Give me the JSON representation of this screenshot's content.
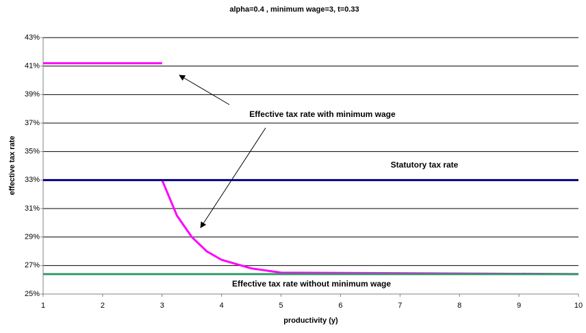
{
  "chart_data": {
    "type": "line",
    "title": "alpha=0.4 , minimum wage=3, t=0.33",
    "x_label": "productivity (y)",
    "y_label": "effective tax rate",
    "xlim": [
      1,
      10
    ],
    "xticks": [
      1,
      2,
      3,
      4,
      5,
      6,
      7,
      8,
      9,
      10
    ],
    "ylim": [
      25,
      43
    ],
    "yticks": [
      {
        "value": 25,
        "label": "25%"
      },
      {
        "value": 27,
        "label": "27%"
      },
      {
        "value": 29,
        "label": "29%"
      },
      {
        "value": 31,
        "label": "31%"
      },
      {
        "value": 33,
        "label": "33%"
      },
      {
        "value": 35,
        "label": "35%"
      },
      {
        "value": 37,
        "label": "37%"
      },
      {
        "value": 39,
        "label": "39%"
      },
      {
        "value": 41,
        "label": "41%"
      },
      {
        "value": 43,
        "label": "43%"
      }
    ],
    "grid": true,
    "series": [
      {
        "name": "Effective tax rate with minimum wage",
        "color": "#ff00ff",
        "x": [
          1,
          3,
          3,
          3,
          3.25,
          3.5,
          3.75,
          4,
          4.5,
          5,
          10
        ],
        "values": [
          41.2,
          41.2,
          null,
          33,
          30.5,
          29,
          28,
          27.4,
          26.8,
          26.5,
          26.4
        ]
      },
      {
        "name": "Statutory tax rate",
        "color": "#000080",
        "x": [
          1,
          10
        ],
        "values": [
          33,
          33
        ]
      },
      {
        "name": "Effective tax rate without minimum wage",
        "color": "#339966",
        "x": [
          1,
          10
        ],
        "values": [
          26.4,
          26.4
        ]
      }
    ]
  }
}
